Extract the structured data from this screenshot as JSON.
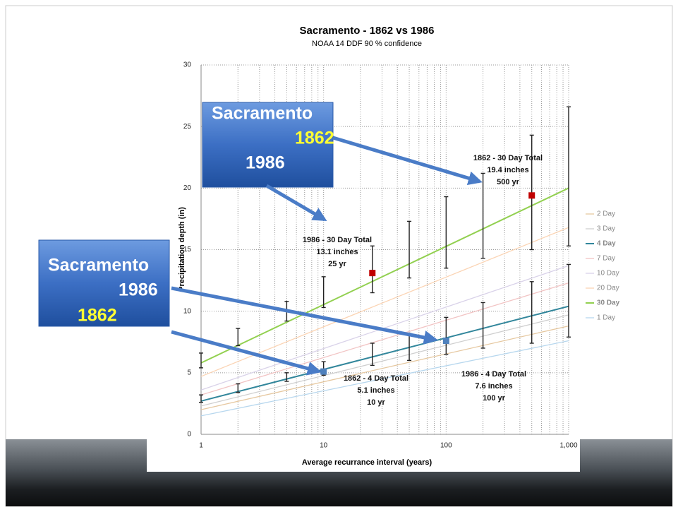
{
  "chart_data": {
    "type": "line",
    "title": "Sacramento - 1862 vs 1986",
    "subtitle": "NOAA 14 DDF 90 % confidence",
    "xlabel": "Average recurrance interval (years)",
    "ylabel": "Precipitation depth (in)",
    "xscale": "log",
    "xlim": [
      1,
      1000
    ],
    "ylim": [
      0,
      30
    ],
    "xticks": [
      1,
      10,
      100,
      {
        "value": 1000,
        "label": "1,000"
      }
    ],
    "yticks": [
      0,
      5,
      10,
      15,
      20,
      25,
      30
    ],
    "grid": true,
    "legend": "right",
    "x": [
      1,
      1000
    ],
    "series": [
      {
        "name": "2 Day",
        "color": "#e6c8a0",
        "values": [
          2.0,
          8.8
        ]
      },
      {
        "name": "3 Day",
        "color": "#cfcfcf",
        "values": [
          2.3,
          9.7
        ]
      },
      {
        "name": "4 Day",
        "color": "#31869b",
        "values": [
          2.7,
          10.4
        ],
        "bold": true
      },
      {
        "name": "7 Day",
        "color": "#f2c4c4",
        "values": [
          3.2,
          12.3
        ]
      },
      {
        "name": "10 Day",
        "color": "#d9d2e9",
        "values": [
          3.6,
          13.7
        ]
      },
      {
        "name": "20 Day",
        "color": "#fbd4b4",
        "values": [
          4.7,
          16.8
        ]
      },
      {
        "name": "30 Day",
        "color": "#92d050",
        "values": [
          5.8,
          20
        ],
        "bold": true
      },
      {
        "name": "1 Day",
        "color": "#b7d7ee",
        "values": [
          1.5,
          7.6
        ]
      }
    ],
    "error_bars": [
      {
        "x": [
          1,
          2,
          5,
          10,
          25,
          50,
          100,
          200,
          500,
          1000
        ],
        "low": [
          5.4,
          7.2,
          9.2,
          10.3,
          11.5,
          12.7,
          13.5,
          14.3,
          15,
          15.3
        ],
        "high": [
          6.6,
          8.6,
          10.8,
          12.8,
          15.3,
          17.3,
          19.3,
          21.2,
          24.3,
          26.6
        ]
      },
      {
        "x": [
          1,
          2,
          5,
          10,
          25,
          50,
          100,
          200,
          500,
          1000
        ],
        "low": [
          2.6,
          3.4,
          4.3,
          4.8,
          5.6,
          6,
          6.5,
          7,
          7.4,
          7.9
        ],
        "high": [
          3.2,
          4.1,
          5.0,
          5.9,
          7.4,
          8.2,
          9.5,
          10.7,
          12.4,
          13.8
        ]
      }
    ],
    "points": [
      {
        "x": 500,
        "y": 19.4,
        "color": "#c00000"
      },
      {
        "x": 25,
        "y": 13.1,
        "color": "#c00000"
      },
      {
        "x": 10,
        "y": 5.1,
        "color": "#4f81bd"
      },
      {
        "x": 100,
        "y": 7.6,
        "color": "#4f81bd"
      }
    ],
    "annotations": [
      {
        "lines": [
          "1862 - 30 Day Total",
          "19.4 inches",
          "500 yr"
        ]
      },
      {
        "lines": [
          "1986  - 30 Day Total",
          "13.1 inches",
          "25 yr"
        ]
      },
      {
        "lines": [
          "1862  - 4 Day Total",
          "5.1 inches",
          "10 yr"
        ]
      },
      {
        "lines": [
          "1986  - 4 Day Total",
          "7.6 inches",
          "100 yr"
        ]
      }
    ]
  },
  "callouts": [
    {
      "lines": [
        "Sacramento",
        "1862",
        "1986"
      ]
    },
    {
      "lines": [
        "Sacramento",
        "1986",
        "1862"
      ]
    }
  ]
}
